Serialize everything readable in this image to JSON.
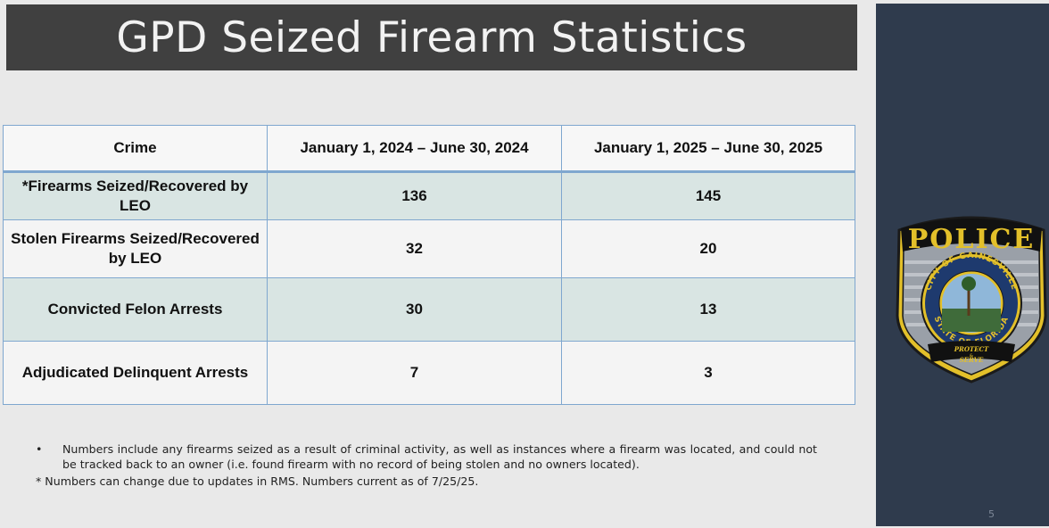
{
  "slide": {
    "title": "GPD Seized Firearm Statistics",
    "page_number": "5"
  },
  "table": {
    "headers": [
      "Crime",
      "January 1, 2024 – June 30, 2024",
      "January 1, 2025 – June 30, 2025"
    ],
    "rows": [
      {
        "crime": "*Firearms Seized/Recovered by LEO",
        "y2024": "136",
        "y2025": "145"
      },
      {
        "crime": "Stolen Firearms Seized/Recovered by LEO",
        "y2024": "32",
        "y2025": "20"
      },
      {
        "crime": "Convicted Felon Arrests",
        "y2024": "30",
        "y2025": "13"
      },
      {
        "crime": "Adjudicated Delinquent Arrests",
        "y2024": "7",
        "y2025": "3"
      }
    ]
  },
  "notes": {
    "bullet_symbol": "•",
    "bullet": "Numbers include any firearms seized as a result of criminal activity, as well as instances where a firearm was located, and could not be tracked back to an owner (i.e. found firearm with no record of being stolen and no owners located).",
    "asterisk": "* Numbers can change due to updates in RMS.  Numbers current as of 7/25/25."
  },
  "badge": {
    "top_text": "POLICE",
    "ring_top": "CITY OF GAINESVILLE",
    "ring_bottom": "STATE OF FLORIDA",
    "motto_line1": "PROTECT",
    "motto_line2": "&",
    "motto_line3": "SERVE",
    "icon": "police-badge-icon"
  },
  "colors": {
    "title_bar": "#404040",
    "side_panel": "#2f3b4d",
    "table_border": "#7fa7cf",
    "row_tint": "#d9e5e3",
    "badge_gold": "#e3c02a"
  }
}
